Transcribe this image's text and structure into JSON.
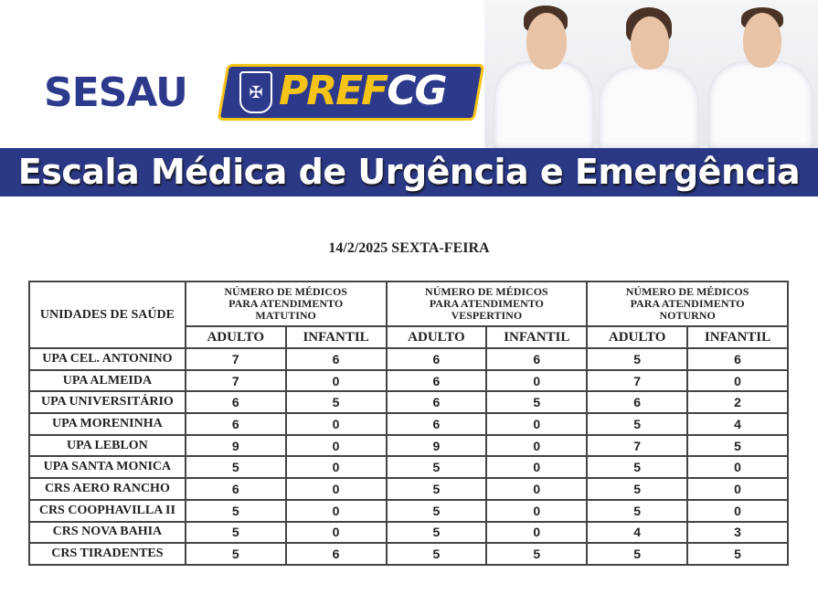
{
  "header": {
    "sesau": "SESAU",
    "pref_yellow": "PREF",
    "pref_white": "CG",
    "banner_title": "Escala Médica de Urgência e Emergência",
    "colors": {
      "navy": "#2b3886",
      "yellow": "#f6c416"
    }
  },
  "date": "14/2/2025 SEXTA-FEIRA",
  "table": {
    "unit_header": "UNIDADES DE SAÚDE",
    "groups": [
      "NÚMERO DE MÉDICOS PARA ATENDIMENTO MATUTINO",
      "NÚMERO DE MÉDICOS PARA ATENDIMENTO VESPERTINO",
      "NÚMERO DE MÉDICOS PARA ATENDIMENTO NOTURNO"
    ],
    "sub": [
      "ADULTO",
      "INFANTIL"
    ],
    "rows": [
      {
        "unit": "UPA CEL. ANTONINO",
        "v": [
          "7",
          "6",
          "6",
          "6",
          "5",
          "6"
        ]
      },
      {
        "unit": "UPA ALMEIDA",
        "v": [
          "7",
          "0",
          "6",
          "0",
          "7",
          "0"
        ]
      },
      {
        "unit": "UPA UNIVERSITÁRIO",
        "v": [
          "6",
          "5",
          "6",
          "5",
          "6",
          "2"
        ]
      },
      {
        "unit": "UPA MORENINHA",
        "v": [
          "6",
          "0",
          "6",
          "0",
          "5",
          "4"
        ]
      },
      {
        "unit": "UPA LEBLON",
        "v": [
          "9",
          "0",
          "9",
          "0",
          "7",
          "5"
        ]
      },
      {
        "unit": "UPA SANTA MONICA",
        "v": [
          "5",
          "0",
          "5",
          "0",
          "5",
          "0"
        ]
      },
      {
        "unit": "CRS AERO RANCHO",
        "v": [
          "6",
          "0",
          "5",
          "0",
          "5",
          "0"
        ]
      },
      {
        "unit": "CRS COOPHAVILLA II",
        "v": [
          "5",
          "0",
          "5",
          "0",
          "5",
          "0"
        ]
      },
      {
        "unit": "CRS NOVA BAHIA",
        "v": [
          "5",
          "0",
          "5",
          "0",
          "4",
          "3"
        ]
      },
      {
        "unit": "CRS TIRADENTES",
        "v": [
          "5",
          "6",
          "5",
          "5",
          "5",
          "5"
        ]
      }
    ]
  }
}
